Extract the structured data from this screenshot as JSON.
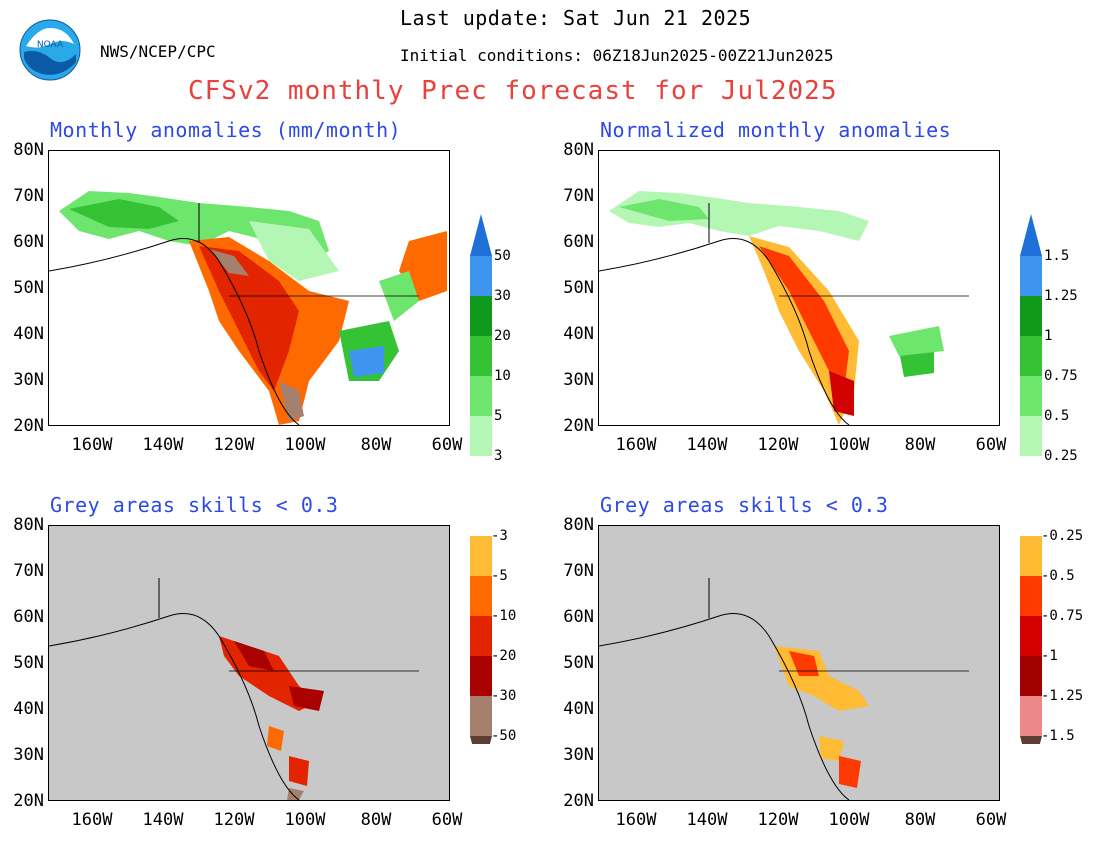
{
  "header": {
    "org": "NWS/NCEP/CPC",
    "last_update": "Last update: Sat Jun 21 2025",
    "initial_conditions": "Initial conditions: 06Z18Jun2025-00Z21Jun2025",
    "main_title": "CFSv2 monthly Prec forecast for Jul2025",
    "logo_text": "NOAA"
  },
  "panels": [
    {
      "title": "Monthly anomalies (mm/month)"
    },
    {
      "title": "Normalized monthly anomalies"
    },
    {
      "title": "Grey areas skills < 0.3"
    },
    {
      "title": "Grey areas skills < 0.3"
    }
  ],
  "axes": {
    "lat_labels": [
      "80N",
      "70N",
      "60N",
      "50N",
      "40N",
      "30N",
      "20N"
    ],
    "lon_labels": [
      "160W",
      "140W",
      "120W",
      "100W",
      "80W",
      "60W"
    ]
  },
  "colorbars": {
    "mm": {
      "labels": [
        "50",
        "30",
        "20",
        "10",
        "5",
        "3",
        "-3",
        "-5",
        "-10",
        "-20",
        "-30",
        "-50"
      ]
    },
    "norm": {
      "labels": [
        "1.5",
        "1.25",
        "1",
        "0.75",
        "0.5",
        "0.25",
        "-0.25",
        "-0.5",
        "-0.75",
        "-1",
        "-1.25",
        "-1.5"
      ]
    },
    "colors": {
      "wet_top": "#1f6fd8",
      "wet": [
        "#3d95f0",
        "#0f9a1c",
        "#35c235",
        "#6ee66e",
        "#b4f7b4"
      ],
      "neutral": "#ffffff",
      "dry": [
        "#ffbb33",
        "#ff6a00",
        "#e32400",
        "#a90000",
        "#a6806e"
      ],
      "dry_bottom": "#5c3d32",
      "norm_dry": [
        "#ffbb33",
        "#ff3a00",
        "#d20000",
        "#a00000",
        "#ee8888"
      ],
      "norm_dry_bottom": "#5c3d32",
      "grey_mask": "#c8c8c8"
    }
  },
  "chart_data": {
    "type": "heatmap",
    "title": "CFSv2 monthly Prec forecast for Jul2025",
    "lat_range": [
      20,
      80
    ],
    "lon_range": [
      -170,
      -60
    ]
  }
}
